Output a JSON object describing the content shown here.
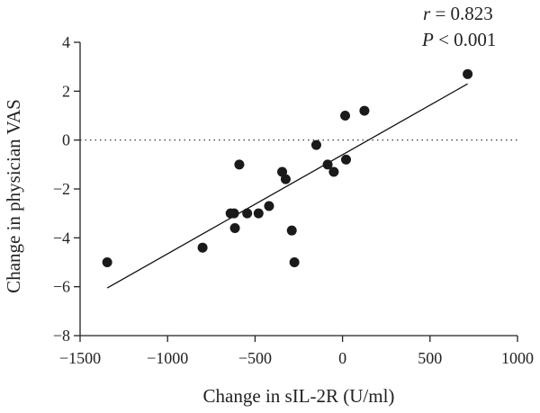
{
  "chart_data": {
    "type": "scatter",
    "xlabel": "Change in sIL-2R (U/ml)",
    "ylabel": "Change in physician VAS",
    "xlim": [
      -1500,
      1000
    ],
    "ylim": [
      -8,
      4
    ],
    "x_ticks": [
      -1500,
      -1000,
      -500,
      0,
      500,
      1000
    ],
    "x_tick_labels": [
      "−1500",
      "−1000",
      "−500",
      "0",
      "500",
      "1000"
    ],
    "y_ticks": [
      -8,
      -6,
      -4,
      -2,
      0,
      2,
      4
    ],
    "y_tick_labels": [
      "−8",
      "−6",
      "−4",
      "−2",
      "0",
      "2",
      "4"
    ],
    "reference_line_y": 0,
    "grid": false,
    "points": [
      {
        "x": -1345,
        "y": -5.0
      },
      {
        "x": -800,
        "y": -4.4
      },
      {
        "x": -640,
        "y": -3.0
      },
      {
        "x": -620,
        "y": -3.0
      },
      {
        "x": -615,
        "y": -3.6
      },
      {
        "x": -590,
        "y": -1.0
      },
      {
        "x": -545,
        "y": -3.0
      },
      {
        "x": -480,
        "y": -3.0
      },
      {
        "x": -420,
        "y": -2.7
      },
      {
        "x": -345,
        "y": -1.3
      },
      {
        "x": -325,
        "y": -1.6
      },
      {
        "x": -290,
        "y": -3.7
      },
      {
        "x": -275,
        "y": -5.0
      },
      {
        "x": -150,
        "y": -0.2
      },
      {
        "x": -85,
        "y": -1.0
      },
      {
        "x": -50,
        "y": -1.3
      },
      {
        "x": 15,
        "y": 1.0
      },
      {
        "x": 20,
        "y": -0.8
      },
      {
        "x": 125,
        "y": 1.2
      },
      {
        "x": 715,
        "y": 2.7
      }
    ],
    "fit_line": {
      "x": [
        -1345,
        715
      ],
      "y": [
        -6.05,
        2.3
      ]
    },
    "annotations": {
      "r_symbol": "r",
      "r_value": " = 0.823",
      "p_symbol": "P",
      "p_value": " < 0.001"
    }
  }
}
